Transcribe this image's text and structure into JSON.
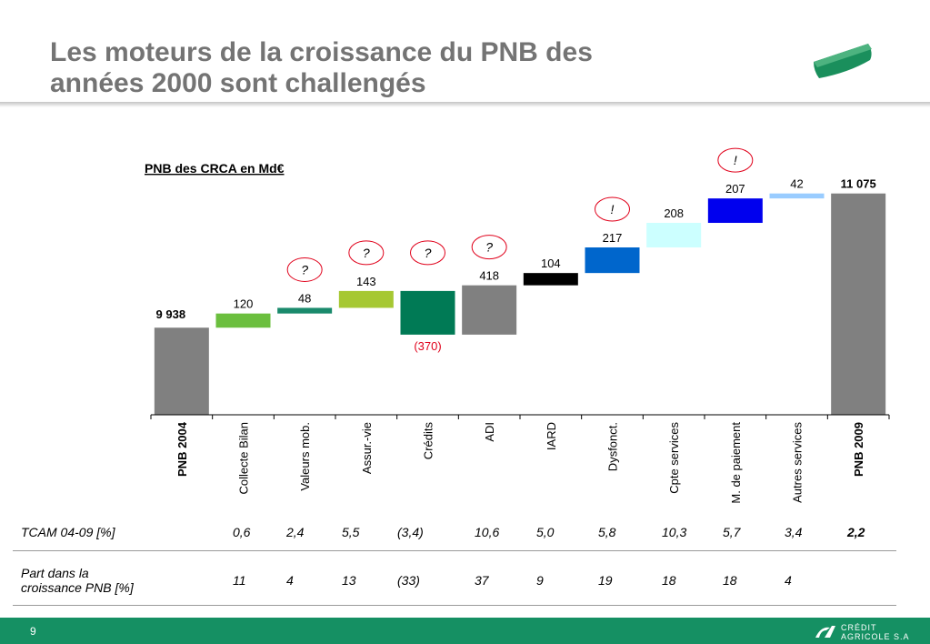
{
  "title": {
    "line1": "Les moteurs de la croissance du PNB des",
    "line2": "années 2000 sont challengés"
  },
  "chart_data": {
    "type": "waterfall",
    "title": "PNB des CRCA en Md€",
    "ylim": [
      9200,
      11250
    ],
    "bars": [
      {
        "category": "PNB 2004",
        "label": "9 938",
        "kind": "total",
        "value": 9938,
        "color": "#808080",
        "bold": true
      },
      {
        "category": "Collecte Bilan",
        "label": "120",
        "kind": "delta",
        "value": 120,
        "color": "#6bbf3e"
      },
      {
        "category": "Valeurs mob.",
        "label": "48",
        "kind": "delta",
        "value": 48,
        "color": "#1a8a6c",
        "marker": "?"
      },
      {
        "category": "Assur.-vie",
        "label": "143",
        "kind": "delta",
        "value": 143,
        "color": "#a6c832",
        "marker": "?"
      },
      {
        "category": "Crédits",
        "label": "(370)",
        "kind": "delta",
        "value": -370,
        "color": "#007a55",
        "marker": "?",
        "label_color": "#e0001a"
      },
      {
        "category": "ADI",
        "label": "418",
        "kind": "delta",
        "value": 418,
        "color": "#808080",
        "marker": "?"
      },
      {
        "category": "IARD",
        "label": "104",
        "kind": "delta",
        "value": 104,
        "color": "#000000"
      },
      {
        "category": "Dysfonct.",
        "label": "217",
        "kind": "delta",
        "value": 217,
        "color": "#0066cc",
        "marker": "!"
      },
      {
        "category": "Cpte services",
        "label": "208",
        "kind": "delta",
        "value": 208,
        "color": "#ccffff"
      },
      {
        "category": "M. de paiement",
        "label": "207",
        "kind": "delta",
        "value": 207,
        "color": "#0000ee",
        "marker": "!"
      },
      {
        "category": "Autres services",
        "label": "42",
        "kind": "delta",
        "value": 42,
        "color": "#99ccff"
      },
      {
        "category": "PNB 2009",
        "label": "11 075",
        "kind": "total",
        "value": 11075,
        "color": "#808080",
        "bold": true
      }
    ]
  },
  "table": {
    "rows": [
      {
        "label_lines": [
          "TCAM 04-09 [%]"
        ],
        "values": [
          "",
          "0,6",
          "2,4",
          "5,5",
          "(3,4)",
          "10,6",
          "5,0",
          "5,8",
          "10,3",
          "5,7",
          "3,4",
          "2,2"
        ]
      },
      {
        "label_lines": [
          "Part dans la",
          "croissance PNB [%]"
        ],
        "values": [
          "",
          "11",
          "4",
          "13",
          "(33)",
          "37",
          "9",
          "19",
          "18",
          "18",
          "4",
          ""
        ]
      }
    ]
  },
  "footer": {
    "page_number": "9",
    "brand_line1": "CRÉDIT",
    "brand_line2": "AGRICOLE S.A",
    "color": "#159063"
  }
}
